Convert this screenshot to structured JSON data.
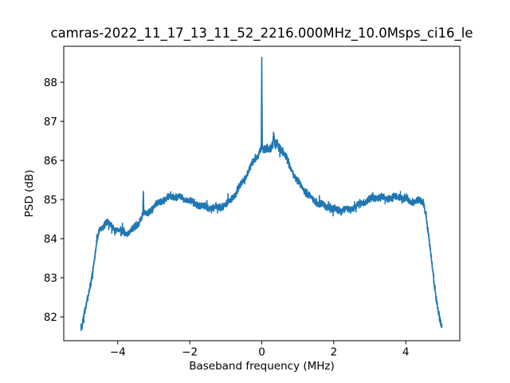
{
  "chart_data": {
    "type": "line",
    "title": "camras-2022_11_17_13_11_52_2216.000MHz_10.0Msps_ci16_le",
    "xlabel": "Baseband frequency (MHz)",
    "ylabel": "PSD (dB)",
    "xlim": [
      -5.5,
      5.5
    ],
    "ylim": [
      81.39,
      88.92
    ],
    "xticks": [
      -4,
      -2,
      0,
      2,
      4
    ],
    "yticks": [
      82,
      83,
      84,
      85,
      86,
      87,
      88
    ],
    "grid": false,
    "legend": false,
    "line_color": "#1f77b4",
    "series": [
      {
        "name": "PSD",
        "envelope": [
          [
            -5.02,
            81.72
          ],
          [
            -4.99,
            81.78
          ],
          [
            -4.96,
            81.95
          ],
          [
            -4.92,
            82.1
          ],
          [
            -4.88,
            82.25
          ],
          [
            -4.84,
            82.45
          ],
          [
            -4.79,
            82.7
          ],
          [
            -4.74,
            82.95
          ],
          [
            -4.69,
            83.2
          ],
          [
            -4.64,
            83.5
          ],
          [
            -4.59,
            83.85
          ],
          [
            -4.54,
            84.1
          ],
          [
            -4.5,
            84.25
          ],
          [
            -4.45,
            84.3
          ],
          [
            -4.38,
            84.35
          ],
          [
            -4.3,
            84.42
          ],
          [
            -4.22,
            84.35
          ],
          [
            -4.12,
            84.28
          ],
          [
            -4.0,
            84.22
          ],
          [
            -3.88,
            84.18
          ],
          [
            -3.76,
            84.15
          ],
          [
            -3.64,
            84.2
          ],
          [
            -3.52,
            84.3
          ],
          [
            -3.42,
            84.42
          ],
          [
            -3.34,
            84.55
          ],
          [
            -3.305,
            84.6
          ],
          [
            -3.29,
            85.18
          ],
          [
            -3.275,
            84.62
          ],
          [
            -3.2,
            84.65
          ],
          [
            -3.1,
            84.72
          ],
          [
            -3.0,
            84.8
          ],
          [
            -2.9,
            84.9
          ],
          [
            -2.8,
            84.97
          ],
          [
            -2.7,
            85.0
          ],
          [
            -2.6,
            85.05
          ],
          [
            -2.5,
            85.08
          ],
          [
            -2.4,
            85.1
          ],
          [
            -2.3,
            85.05
          ],
          [
            -2.2,
            85.02
          ],
          [
            -2.1,
            85.0
          ],
          [
            -2.0,
            84.97
          ],
          [
            -1.9,
            84.92
          ],
          [
            -1.8,
            84.88
          ],
          [
            -1.7,
            84.85
          ],
          [
            -1.6,
            84.82
          ],
          [
            -1.5,
            84.8
          ],
          [
            -1.4,
            84.78
          ],
          [
            -1.3,
            84.78
          ],
          [
            -1.2,
            84.8
          ],
          [
            -1.1,
            84.83
          ],
          [
            -1.0,
            84.87
          ],
          [
            -0.95,
            84.9
          ],
          [
            -0.85,
            85.0
          ],
          [
            -0.75,
            85.12
          ],
          [
            -0.65,
            85.25
          ],
          [
            -0.55,
            85.42
          ],
          [
            -0.45,
            85.58
          ],
          [
            -0.35,
            85.75
          ],
          [
            -0.28,
            85.88
          ],
          [
            -0.2,
            86.02
          ],
          [
            -0.14,
            86.1
          ],
          [
            -0.08,
            86.18
          ],
          [
            -0.03,
            86.28
          ],
          [
            -0.015,
            86.35
          ],
          [
            0.0,
            88.6
          ],
          [
            0.015,
            86.3
          ],
          [
            0.05,
            86.22
          ],
          [
            0.1,
            86.28
          ],
          [
            0.15,
            86.35
          ],
          [
            0.2,
            86.3
          ],
          [
            0.25,
            86.32
          ],
          [
            0.3,
            86.38
          ],
          [
            0.33,
            86.62
          ],
          [
            0.36,
            86.38
          ],
          [
            0.42,
            86.42
          ],
          [
            0.48,
            86.35
          ],
          [
            0.55,
            86.28
          ],
          [
            0.62,
            86.18
          ],
          [
            0.7,
            86.02
          ],
          [
            0.8,
            85.82
          ],
          [
            0.9,
            85.62
          ],
          [
            1.0,
            85.45
          ],
          [
            1.1,
            85.32
          ],
          [
            1.25,
            85.15
          ],
          [
            1.4,
            85.02
          ],
          [
            1.55,
            84.92
          ],
          [
            1.7,
            84.85
          ],
          [
            1.85,
            84.8
          ],
          [
            2.0,
            84.75
          ],
          [
            2.15,
            84.72
          ],
          [
            2.3,
            84.72
          ],
          [
            2.45,
            84.75
          ],
          [
            2.6,
            84.82
          ],
          [
            2.75,
            84.9
          ],
          [
            2.9,
            84.98
          ],
          [
            3.05,
            85.03
          ],
          [
            3.2,
            85.05
          ],
          [
            3.35,
            85.06
          ],
          [
            3.5,
            85.03
          ],
          [
            3.65,
            85.05
          ],
          [
            3.8,
            85.06
          ],
          [
            3.95,
            85.03
          ],
          [
            4.1,
            84.98
          ],
          [
            4.2,
            84.93
          ],
          [
            4.3,
            84.95
          ],
          [
            4.42,
            84.98
          ],
          [
            4.5,
            84.88
          ],
          [
            4.56,
            84.6
          ],
          [
            4.62,
            84.15
          ],
          [
            4.68,
            83.7
          ],
          [
            4.74,
            83.25
          ],
          [
            4.8,
            82.8
          ],
          [
            4.86,
            82.4
          ],
          [
            4.92,
            82.05
          ],
          [
            4.96,
            81.85
          ],
          [
            5.0,
            81.78
          ]
        ],
        "noise": {
          "seed": 7,
          "amplitude": 0.1,
          "spike_amplitude": 0.18,
          "spike_every": 13,
          "boost_region": [
            0.02,
            0.6
          ],
          "boost_factor": 1.4,
          "wobble_amplitude": 0.03,
          "wobble_period": 0.33
        },
        "n_points": 3000
      }
    ]
  }
}
